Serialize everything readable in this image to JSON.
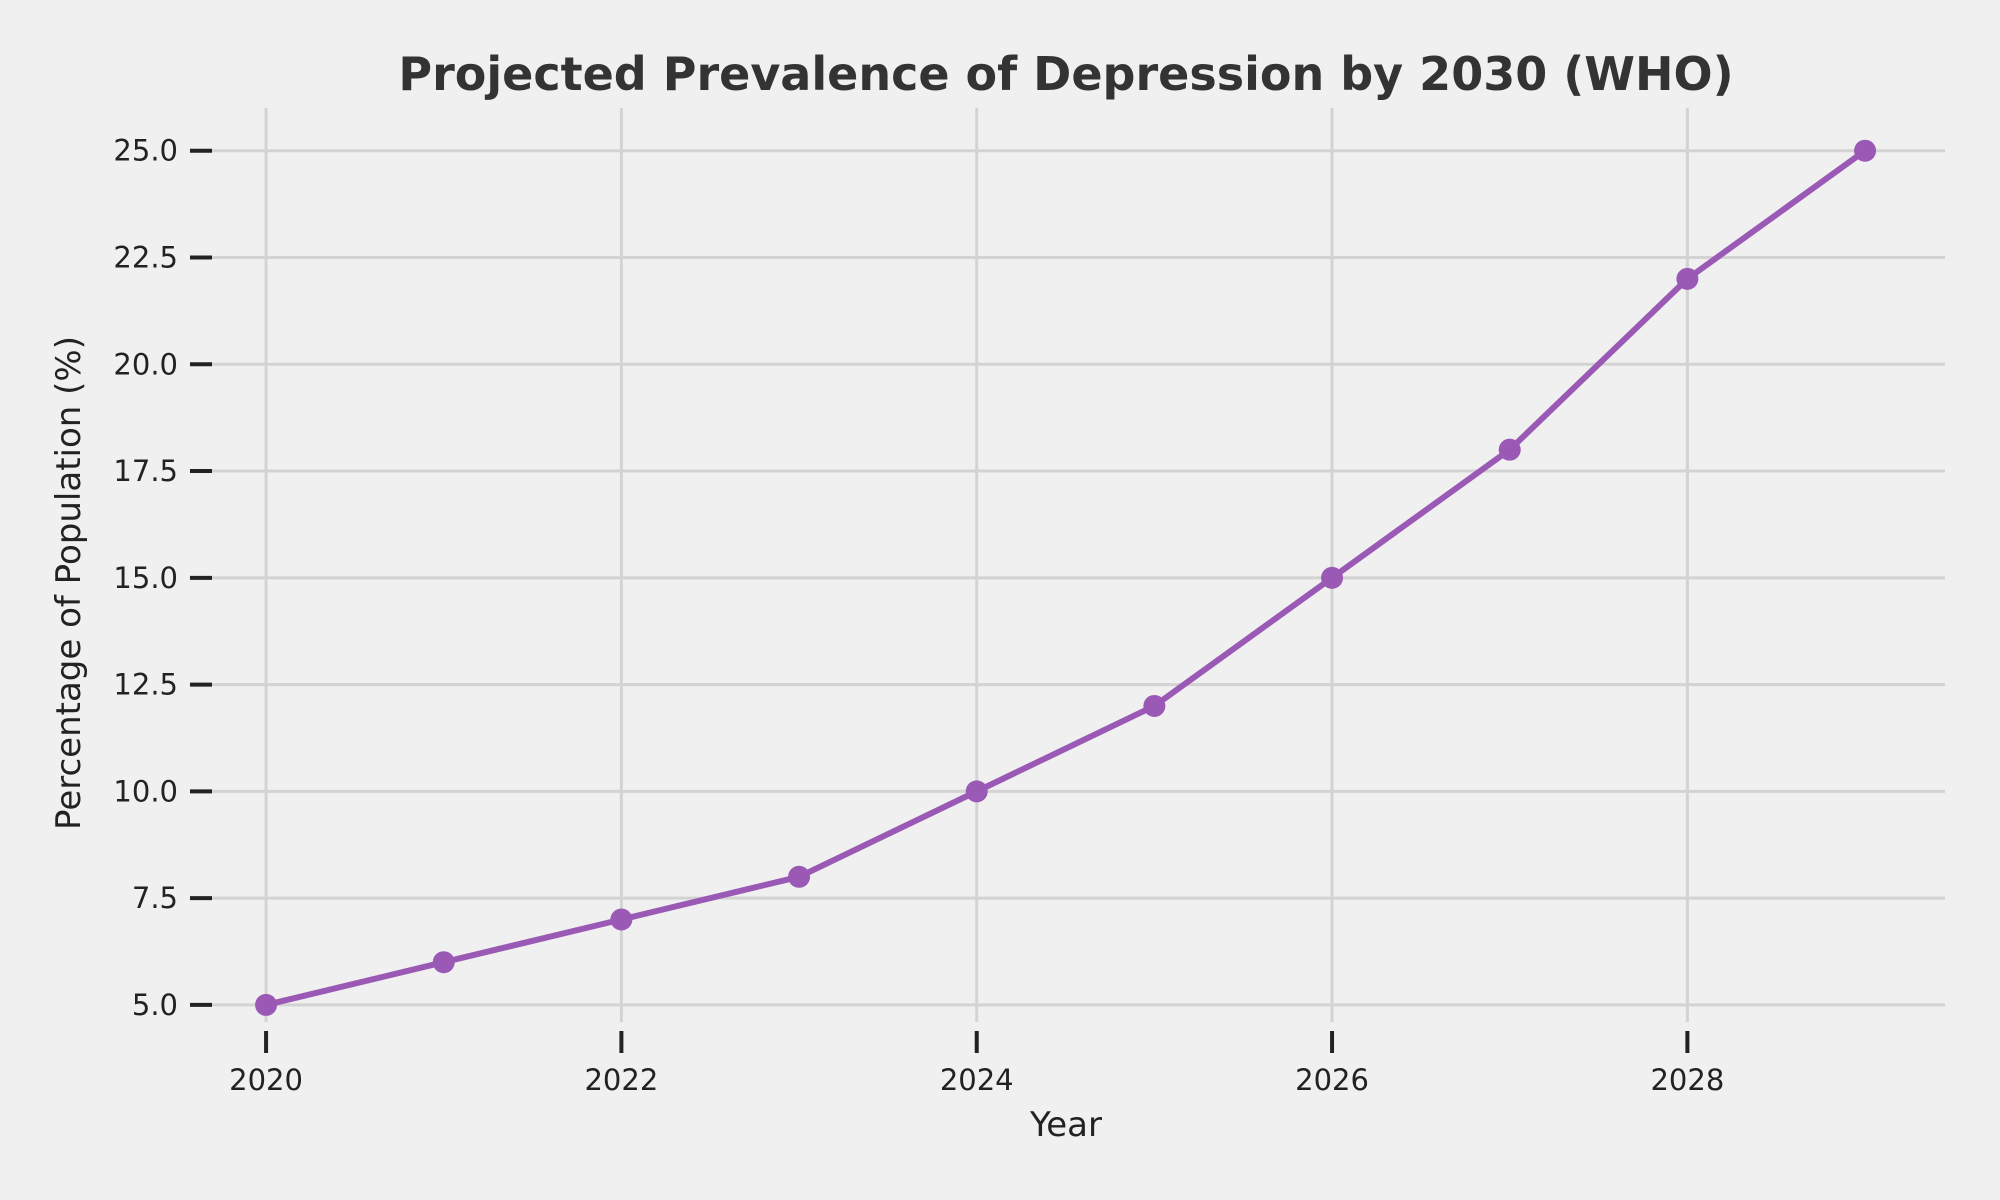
{
  "chart_data": {
    "type": "line",
    "title": "Projected Prevalence of Depression by 2030 (WHO)",
    "xlabel": "Year",
    "ylabel": "Percentage of Population (%)",
    "x": [
      2020,
      2021,
      2022,
      2023,
      2024,
      2025,
      2026,
      2027,
      2028,
      2029
    ],
    "series": [
      {
        "values": [
          5,
          6,
          7,
          8,
          10,
          12,
          15,
          18,
          22,
          25
        ],
        "color": "#9b59b6",
        "marker": "circle"
      }
    ],
    "xlim": [
      2019.6,
      2029.45
    ],
    "ylim": [
      4.6,
      26
    ],
    "xticks": [
      2020,
      2022,
      2024,
      2026,
      2028
    ],
    "xtick_labels": [
      "2020",
      "2022",
      "2024",
      "2026",
      "2028"
    ],
    "yticks": [
      5,
      7.5,
      10,
      12.5,
      15,
      17.5,
      20,
      22.5,
      25
    ],
    "ytick_labels": [
      "5.0",
      "7.5",
      "10.0",
      "12.5",
      "15.0",
      "17.5",
      "20.0",
      "22.5",
      "25.0"
    ],
    "grid": true,
    "legend": "none",
    "background_color": "#f0f0f0",
    "grid_color": "#d3d3d3"
  }
}
